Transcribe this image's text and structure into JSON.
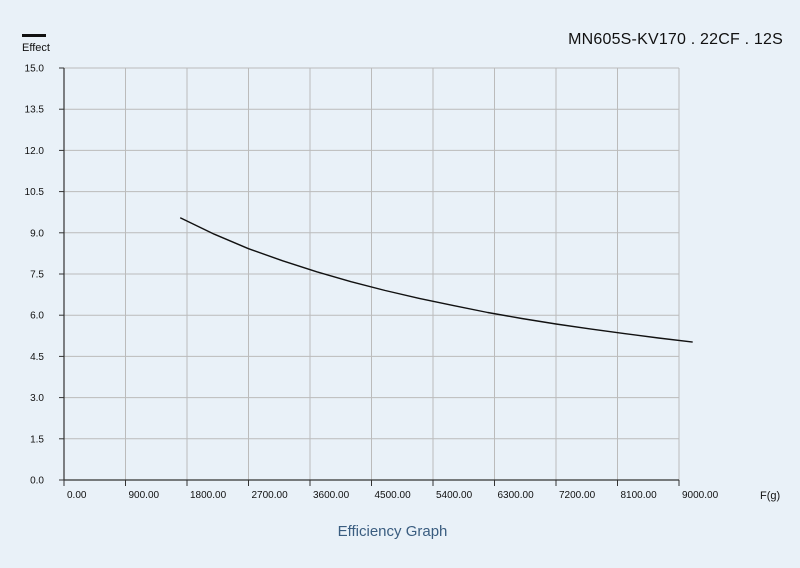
{
  "chart_data": {
    "type": "line",
    "title": "MN605S-KV170 . 22CF . 12S",
    "ylabel": "Effect",
    "xlabel": "F(g)",
    "caption": "Efficiency Graph",
    "x_ticks": [
      "0.00",
      "900.00",
      "1800.00",
      "2700.00",
      "3600.00",
      "4500.00",
      "5400.00",
      "6300.00",
      "7200.00",
      "8100.00",
      "9000.00"
    ],
    "y_ticks": [
      "0.0",
      "1.5",
      "3.0",
      "4.5",
      "6.0",
      "7.5",
      "9.0",
      "10.5",
      "12.0",
      "13.5",
      "15.0"
    ],
    "xlim": [
      0,
      9000
    ],
    "ylim": [
      0,
      15
    ],
    "grid": true,
    "series": [
      {
        "x": [
          1700,
          2200,
          2700,
          3200,
          3700,
          4200,
          4700,
          5200,
          5700,
          6200,
          6700,
          7200,
          7700,
          8200,
          8700,
          9200
        ],
        "y": [
          9.55,
          8.95,
          8.42,
          7.98,
          7.58,
          7.22,
          6.9,
          6.61,
          6.35,
          6.1,
          5.88,
          5.68,
          5.5,
          5.33,
          5.17,
          5.02
        ]
      }
    ],
    "colors": {
      "line": "#111111",
      "grid": "#bbbbbb",
      "axis": "#333333",
      "background": "#e9f1f8",
      "caption": "#3a5d80"
    }
  }
}
